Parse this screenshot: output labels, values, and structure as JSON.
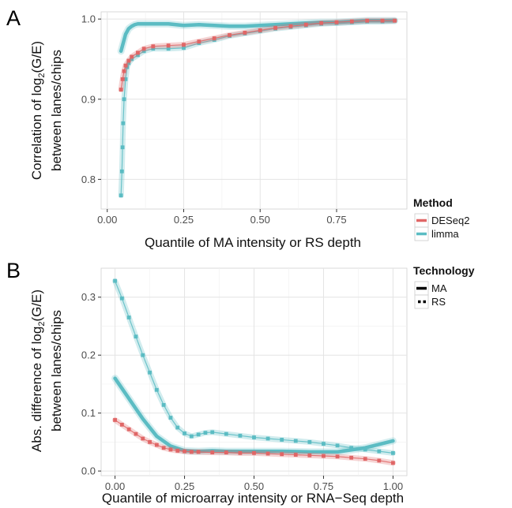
{
  "panels": {
    "a": {
      "letter": "A"
    },
    "b": {
      "letter": "B"
    }
  },
  "legend": {
    "method_title": "Method",
    "methods": [
      {
        "label": "DESeq2",
        "color": "#e06666"
      },
      {
        "label": "limma",
        "color": "#5bbcc3"
      }
    ],
    "technology_title": "Technology",
    "technologies": [
      {
        "label": "MA",
        "style": "solid"
      },
      {
        "label": "RS",
        "style": "dotted"
      }
    ]
  },
  "chart_data": [
    {
      "panel": "A",
      "type": "line",
      "xlabel": "Quantile of MA intensity or RS depth",
      "ylabel_line1": "Correlation of log",
      "ylabel_sub": "2",
      "ylabel_rest": "(G/E)",
      "ylabel_line2": "between lanes/chips",
      "xlim": [
        -0.02,
        0.98
      ],
      "ylim": [
        0.763,
        1.009
      ],
      "xticks": [
        0.0,
        0.25,
        0.5,
        0.75
      ],
      "xtick_labels": [
        "0.00",
        "0.25",
        "0.50",
        "0.75"
      ],
      "yticks": [
        0.8,
        0.9,
        1.0
      ],
      "ytick_labels": [
        "0.8",
        "0.9",
        "1.0"
      ],
      "grid": true,
      "series": [
        {
          "method": "limma",
          "technology": "MA",
          "color": "#5bbcc3",
          "x": [
            0.045,
            0.05,
            0.055,
            0.06,
            0.07,
            0.08,
            0.09,
            0.1,
            0.12,
            0.15,
            0.2,
            0.25,
            0.3,
            0.35,
            0.4,
            0.45,
            0.5,
            0.55,
            0.6,
            0.65,
            0.7,
            0.75,
            0.8,
            0.85,
            0.9,
            0.94
          ],
          "y": [
            0.96,
            0.967,
            0.974,
            0.981,
            0.988,
            0.991,
            0.993,
            0.994,
            0.994,
            0.994,
            0.994,
            0.992,
            0.993,
            0.992,
            0.991,
            0.991,
            0.992,
            0.993,
            0.994,
            0.995,
            0.996,
            0.996,
            0.997,
            0.998,
            0.998,
            0.998
          ]
        },
        {
          "method": "limma",
          "technology": "RS",
          "color": "#5bbcc3",
          "x": [
            0.045,
            0.048,
            0.05,
            0.052,
            0.055,
            0.06,
            0.065,
            0.07,
            0.08,
            0.1,
            0.12,
            0.15,
            0.2,
            0.25,
            0.3,
            0.35,
            0.4,
            0.45,
            0.5,
            0.55,
            0.6,
            0.65,
            0.7,
            0.75,
            0.8,
            0.85,
            0.9,
            0.94
          ],
          "y": [
            0.78,
            0.81,
            0.84,
            0.87,
            0.9,
            0.925,
            0.94,
            0.945,
            0.95,
            0.955,
            0.96,
            0.963,
            0.963,
            0.964,
            0.97,
            0.974,
            0.979,
            0.982,
            0.985,
            0.988,
            0.99,
            0.992,
            0.994,
            0.995,
            0.996,
            0.997,
            0.997,
            0.998
          ]
        },
        {
          "method": "DESeq2",
          "technology": "RS",
          "color": "#e06666",
          "x": [
            0.045,
            0.05,
            0.055,
            0.06,
            0.07,
            0.08,
            0.1,
            0.12,
            0.15,
            0.2,
            0.25,
            0.3,
            0.35,
            0.4,
            0.45,
            0.5,
            0.55,
            0.6,
            0.65,
            0.7,
            0.75,
            0.8,
            0.85,
            0.9,
            0.94
          ],
          "y": [
            0.912,
            0.925,
            0.935,
            0.942,
            0.948,
            0.953,
            0.958,
            0.963,
            0.966,
            0.967,
            0.968,
            0.972,
            0.976,
            0.98,
            0.983,
            0.986,
            0.989,
            0.991,
            0.993,
            0.995,
            0.996,
            0.997,
            0.998,
            0.998,
            0.998
          ]
        }
      ]
    },
    {
      "panel": "B",
      "type": "line",
      "xlabel": "Quantile of microarray intensity or RNA−Seq depth",
      "ylabel_line1": "Abs. difference of log",
      "ylabel_sub": "2",
      "ylabel_rest": "(G/E)",
      "ylabel_line2": "between lanes/chips",
      "xlim": [
        -0.05,
        1.05
      ],
      "ylim": [
        -0.008,
        0.35
      ],
      "xticks": [
        0.0,
        0.25,
        0.5,
        0.75,
        1.0
      ],
      "xtick_labels": [
        "0.00",
        "0.25",
        "0.50",
        "0.75",
        "1.00"
      ],
      "yticks": [
        0.0,
        0.1,
        0.2,
        0.3
      ],
      "ytick_labels": [
        "0.0",
        "0.1",
        "0.2",
        "0.3"
      ],
      "grid": true,
      "series": [
        {
          "method": "limma",
          "technology": "RS",
          "color": "#5bbcc3",
          "x": [
            0.0,
            0.025,
            0.05,
            0.075,
            0.1,
            0.125,
            0.15,
            0.175,
            0.2,
            0.225,
            0.25,
            0.275,
            0.3,
            0.325,
            0.35,
            0.4,
            0.45,
            0.5,
            0.55,
            0.6,
            0.65,
            0.7,
            0.75,
            0.8,
            0.85,
            0.9,
            0.95,
            1.0
          ],
          "y": [
            0.328,
            0.298,
            0.265,
            0.232,
            0.2,
            0.17,
            0.14,
            0.114,
            0.092,
            0.075,
            0.065,
            0.06,
            0.063,
            0.066,
            0.067,
            0.064,
            0.061,
            0.058,
            0.056,
            0.054,
            0.052,
            0.05,
            0.047,
            0.044,
            0.04,
            0.037,
            0.034,
            0.031
          ]
        },
        {
          "method": "limma",
          "technology": "MA",
          "color": "#5bbcc3",
          "x": [
            0.0,
            0.05,
            0.1,
            0.15,
            0.2,
            0.25,
            0.3,
            0.35,
            0.4,
            0.5,
            0.6,
            0.7,
            0.8,
            0.9,
            1.0
          ],
          "y": [
            0.16,
            0.125,
            0.09,
            0.06,
            0.043,
            0.035,
            0.034,
            0.035,
            0.034,
            0.034,
            0.034,
            0.033,
            0.033,
            0.04,
            0.052
          ]
        },
        {
          "method": "DESeq2",
          "technology": "RS",
          "color": "#e06666",
          "x": [
            0.0,
            0.025,
            0.05,
            0.075,
            0.1,
            0.125,
            0.15,
            0.175,
            0.2,
            0.225,
            0.25,
            0.275,
            0.3,
            0.35,
            0.4,
            0.45,
            0.5,
            0.55,
            0.6,
            0.65,
            0.7,
            0.75,
            0.8,
            0.85,
            0.9,
            0.95,
            1.0
          ],
          "y": [
            0.088,
            0.08,
            0.072,
            0.064,
            0.056,
            0.05,
            0.045,
            0.04,
            0.037,
            0.035,
            0.034,
            0.033,
            0.033,
            0.032,
            0.032,
            0.031,
            0.031,
            0.03,
            0.029,
            0.028,
            0.027,
            0.026,
            0.025,
            0.023,
            0.021,
            0.018,
            0.014
          ]
        }
      ]
    }
  ]
}
